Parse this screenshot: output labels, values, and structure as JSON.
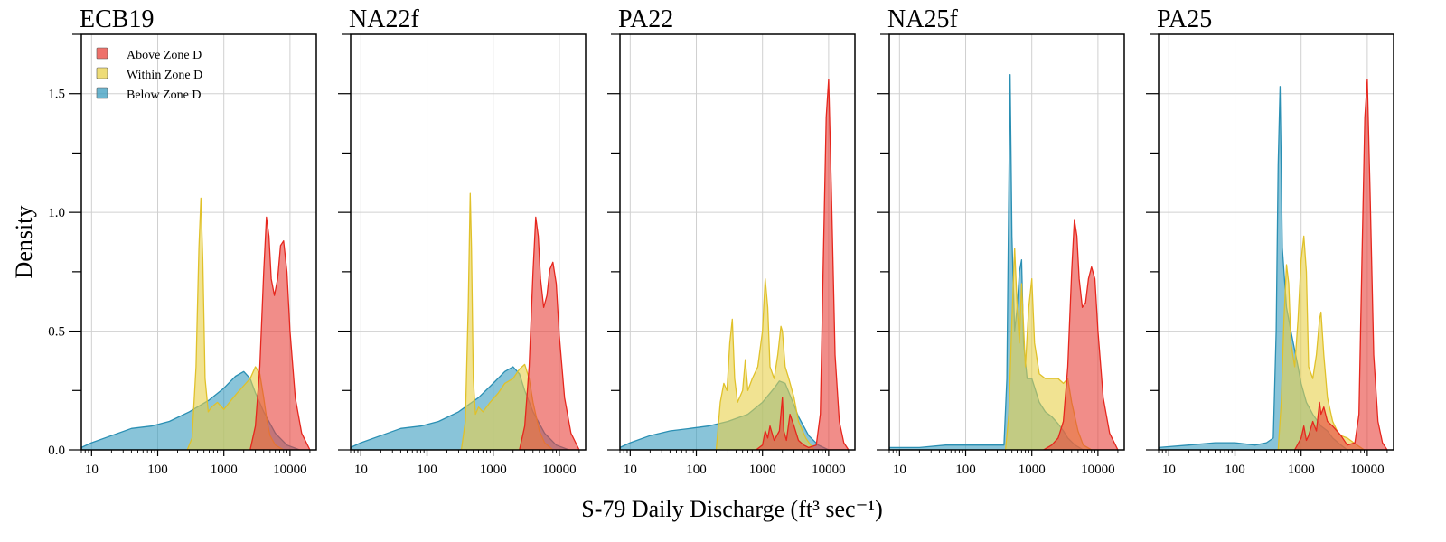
{
  "colors": {
    "above": "#e8413a",
    "within": "#e8d04a",
    "below": "#3a9cbf",
    "above_stroke": "#e6261d",
    "within_stroke": "#e0c12a",
    "below_stroke": "#2a8fb3",
    "grid": "#d0d0d0"
  },
  "chart_data": {
    "type": "area",
    "ylabel": "Density",
    "xlabel": "S-79 Daily Discharge (ft³ sec⁻¹)",
    "x_scale": "log",
    "xlim": [
      7,
      25000
    ],
    "ylim": [
      0,
      1.75
    ],
    "grid": true,
    "x_ticks": [
      10,
      100,
      1000,
      10000
    ],
    "x_tick_labels": [
      "10",
      "100",
      "1000",
      "10000"
    ],
    "y_ticks": [
      0.0,
      0.5,
      1.0,
      1.5
    ],
    "y_tick_labels": [
      "0.0",
      "0.5",
      "1.0",
      "1.5"
    ],
    "legend": {
      "placement": "top-left",
      "entries": [
        "Above Zone D",
        "Within Zone D",
        "Below Zone D"
      ]
    },
    "panels": [
      {
        "title": "ECB19",
        "series": [
          {
            "name": "Below Zone D",
            "x": [
              7,
              10,
              20,
              40,
              80,
              150,
              300,
              600,
              1000,
              1500,
              2000,
              2500,
              3000,
              4000,
              6000,
              9000,
              14000
            ],
            "y": [
              0.01,
              0.03,
              0.06,
              0.09,
              0.1,
              0.12,
              0.16,
              0.21,
              0.26,
              0.31,
              0.33,
              0.3,
              0.24,
              0.16,
              0.07,
              0.02,
              0.0
            ]
          },
          {
            "name": "Within Zone D",
            "x": [
              280,
              330,
              380,
              420,
              450,
              480,
              520,
              580,
              650,
              800,
              1000,
              1300,
              1600,
              2000,
              2500,
              3000,
              3500,
              4000,
              4500,
              5000,
              6000,
              8000
            ],
            "y": [
              0.0,
              0.05,
              0.35,
              0.85,
              1.06,
              0.8,
              0.3,
              0.16,
              0.18,
              0.2,
              0.17,
              0.21,
              0.24,
              0.27,
              0.3,
              0.35,
              0.32,
              0.22,
              0.12,
              0.06,
              0.02,
              0.0
            ]
          },
          {
            "name": "Above Zone D",
            "x": [
              2500,
              3000,
              3500,
              4000,
              4400,
              4800,
              5200,
              5800,
              6500,
              7200,
              8000,
              9000,
              10000,
              12000,
              15000,
              20000
            ],
            "y": [
              0.0,
              0.1,
              0.35,
              0.75,
              0.98,
              0.9,
              0.72,
              0.65,
              0.72,
              0.86,
              0.88,
              0.75,
              0.5,
              0.22,
              0.07,
              0.0
            ]
          }
        ]
      },
      {
        "title": "NA22f",
        "series": [
          {
            "name": "Below Zone D",
            "x": [
              7,
              10,
              20,
              40,
              80,
              150,
              300,
              600,
              1000,
              1500,
              2000,
              2500,
              3000,
              4000,
              6000,
              9000,
              14000
            ],
            "y": [
              0.01,
              0.03,
              0.06,
              0.09,
              0.1,
              0.12,
              0.16,
              0.22,
              0.28,
              0.33,
              0.35,
              0.32,
              0.25,
              0.16,
              0.07,
              0.02,
              0.0
            ]
          },
          {
            "name": "Within Zone D",
            "x": [
              330,
              380,
              420,
              450,
              470,
              500,
              540,
              600,
              700,
              900,
              1200,
              1500,
              2000,
              2500,
              3000,
              3500,
              4000,
              5000,
              6000,
              8000
            ],
            "y": [
              0.0,
              0.12,
              0.6,
              1.08,
              0.85,
              0.3,
              0.15,
              0.18,
              0.16,
              0.2,
              0.24,
              0.28,
              0.3,
              0.34,
              0.36,
              0.3,
              0.2,
              0.08,
              0.03,
              0.0
            ]
          },
          {
            "name": "Above Zone D",
            "x": [
              2500,
              3000,
              3500,
              4000,
              4400,
              4800,
              5200,
              5800,
              6500,
              7200,
              8000,
              9000,
              10000,
              12000,
              15000,
              20000
            ],
            "y": [
              0.0,
              0.1,
              0.35,
              0.75,
              0.98,
              0.9,
              0.72,
              0.6,
              0.65,
              0.76,
              0.79,
              0.7,
              0.48,
              0.22,
              0.07,
              0.0
            ]
          }
        ]
      },
      {
        "title": "PA22",
        "series": [
          {
            "name": "Below Zone D",
            "x": [
              7,
              10,
              20,
              40,
              80,
              150,
              300,
              600,
              1000,
              1500,
              1800,
              2200,
              2700,
              3500,
              5000,
              7000,
              10000
            ],
            "y": [
              0.01,
              0.03,
              0.06,
              0.08,
              0.09,
              0.1,
              0.12,
              0.15,
              0.2,
              0.26,
              0.29,
              0.28,
              0.22,
              0.14,
              0.06,
              0.02,
              0.0
            ]
          },
          {
            "name": "Within Zone D",
            "x": [
              200,
              230,
              260,
              290,
              320,
              350,
              380,
              420,
              500,
              550,
              600,
              700,
              850,
              1000,
              1100,
              1200,
              1300,
              1500,
              1700,
              1900,
              2000,
              2200,
              2500,
              3000,
              3500,
              4500,
              6000
            ],
            "y": [
              0.0,
              0.2,
              0.28,
              0.25,
              0.45,
              0.55,
              0.3,
              0.2,
              0.25,
              0.38,
              0.25,
              0.3,
              0.35,
              0.5,
              0.72,
              0.6,
              0.35,
              0.3,
              0.4,
              0.52,
              0.5,
              0.35,
              0.3,
              0.22,
              0.12,
              0.05,
              0.0
            ]
          },
          {
            "name": "Above Zone D",
            "x": [
              800,
              1000,
              1100,
              1200,
              1300,
              1500,
              1800,
              2000,
              2100,
              2300,
              2600,
              3000,
              3500,
              4200,
              5000,
              6500,
              7500,
              8300,
              9200,
              10000,
              11000,
              12500,
              14500,
              17000,
              20000
            ],
            "y": [
              0.0,
              0.02,
              0.08,
              0.05,
              0.1,
              0.04,
              0.08,
              0.22,
              0.08,
              0.04,
              0.15,
              0.1,
              0.04,
              0.02,
              0.01,
              0.02,
              0.15,
              0.8,
              1.4,
              1.56,
              1.1,
              0.4,
              0.12,
              0.03,
              0.0
            ]
          }
        ]
      },
      {
        "title": "NA25f",
        "series": [
          {
            "name": "Below Zone D",
            "x": [
              7,
              20,
              50,
              100,
              200,
              300,
              380,
              420,
              450,
              470,
              500,
              550,
              600,
              650,
              700,
              750,
              850,
              1000,
              1300,
              1600,
              2000,
              2500,
              3000,
              3500,
              4500,
              6000
            ],
            "y": [
              0.01,
              0.01,
              0.02,
              0.02,
              0.02,
              0.02,
              0.02,
              0.3,
              1.1,
              1.58,
              0.9,
              0.5,
              0.6,
              0.75,
              0.8,
              0.45,
              0.3,
              0.3,
              0.2,
              0.16,
              0.14,
              0.11,
              0.08,
              0.05,
              0.02,
              0.0
            ]
          },
          {
            "name": "Within Zone D",
            "x": [
              400,
              450,
              500,
              550,
              600,
              650,
              700,
              800,
              900,
              1000,
              1100,
              1300,
              1600,
              2000,
              2500,
              3000,
              3500,
              4000,
              5000,
              6000,
              8000
            ],
            "y": [
              0.0,
              0.15,
              0.55,
              0.85,
              0.6,
              0.45,
              0.7,
              0.35,
              0.6,
              0.72,
              0.45,
              0.32,
              0.3,
              0.3,
              0.3,
              0.28,
              0.3,
              0.2,
              0.08,
              0.02,
              0.0
            ]
          },
          {
            "name": "Above Zone D",
            "x": [
              1500,
              2000,
              2500,
              3000,
              3500,
              4000,
              4400,
              4800,
              5200,
              5800,
              6500,
              7200,
              8000,
              9000,
              10000,
              12000,
              15000,
              20000
            ],
            "y": [
              0.0,
              0.02,
              0.05,
              0.12,
              0.35,
              0.75,
              0.97,
              0.9,
              0.72,
              0.6,
              0.62,
              0.72,
              0.77,
              0.72,
              0.5,
              0.22,
              0.07,
              0.0
            ]
          }
        ]
      },
      {
        "title": "PA25",
        "series": [
          {
            "name": "Below Zone D",
            "x": [
              7,
              20,
              50,
              100,
              200,
              300,
              380,
              420,
              450,
              480,
              520,
              600,
              700,
              800,
              900,
              1000,
              1200,
              1500,
              2000,
              2500,
              3000,
              4000,
              5000
            ],
            "y": [
              0.01,
              0.02,
              0.03,
              0.03,
              0.02,
              0.03,
              0.05,
              0.5,
              1.2,
              1.53,
              0.85,
              0.6,
              0.5,
              0.42,
              0.35,
              0.28,
              0.2,
              0.15,
              0.1,
              0.08,
              0.05,
              0.02,
              0.0
            ]
          },
          {
            "name": "Within Zone D",
            "x": [
              450,
              500,
              550,
              600,
              650,
              700,
              800,
              900,
              1000,
              1100,
              1200,
              1300,
              1500,
              1700,
              1900,
              2000,
              2200,
              2500,
              3000,
              3500,
              4000,
              5000,
              7000,
              9000
            ],
            "y": [
              0.0,
              0.2,
              0.55,
              0.78,
              0.7,
              0.45,
              0.35,
              0.55,
              0.8,
              0.9,
              0.75,
              0.35,
              0.3,
              0.4,
              0.55,
              0.58,
              0.4,
              0.22,
              0.12,
              0.08,
              0.06,
              0.05,
              0.02,
              0.0
            ]
          },
          {
            "name": "Above Zone D",
            "x": [
              800,
              1000,
              1100,
              1200,
              1300,
              1500,
              1700,
              1900,
              2000,
              2200,
              2500,
              3000,
              4000,
              5000,
              6500,
              7500,
              8300,
              9200,
              10000,
              11000,
              12500,
              14500,
              17000,
              20000
            ],
            "y": [
              0.0,
              0.05,
              0.1,
              0.04,
              0.06,
              0.12,
              0.08,
              0.2,
              0.15,
              0.18,
              0.12,
              0.1,
              0.06,
              0.02,
              0.03,
              0.15,
              0.8,
              1.4,
              1.56,
              1.1,
              0.4,
              0.12,
              0.03,
              0.0
            ]
          }
        ]
      }
    ]
  }
}
